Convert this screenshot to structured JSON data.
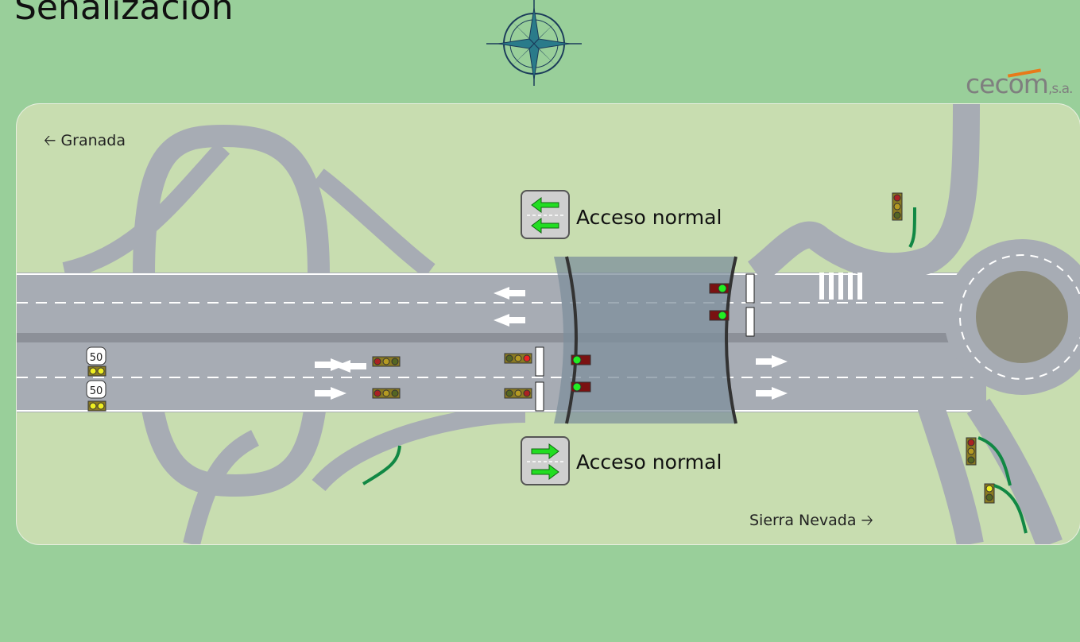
{
  "title": "Señalización",
  "logo": {
    "text": "cecom",
    "suffix": ",s.a.",
    "accent_color": "#e87a1a"
  },
  "places": {
    "west": "Granada",
    "east": "Sierra Nevada"
  },
  "signs": {
    "top": {
      "label": "Acceso normal",
      "arrow_direction": "left",
      "arrow_color": "#22dd22"
    },
    "bottom": {
      "label": "Acceso normal",
      "arrow_direction": "right",
      "arrow_color": "#22dd22"
    }
  },
  "speed_limits": [
    "50",
    "50"
  ],
  "colors": {
    "background": "#99cf9a",
    "map": "#c8ddb0",
    "road": "#a7acb4",
    "gantry": "#7d8f9c"
  }
}
